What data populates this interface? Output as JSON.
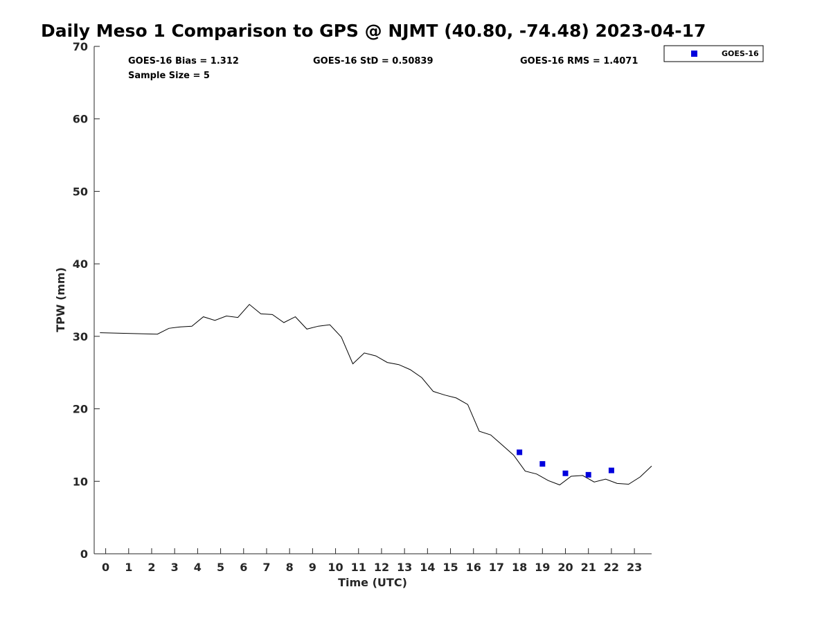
{
  "chart_data": {
    "type": "line",
    "title": "Daily Meso 1 Comparison to GPS @ NJMT (40.80, -74.48) 2023-04-17",
    "xlabel": "Time (UTC)",
    "ylabel": "TPW (mm)",
    "xlim": [
      -0.5,
      23.75
    ],
    "ylim": [
      0,
      70
    ],
    "x_ticks": [
      0,
      1,
      2,
      3,
      4,
      5,
      6,
      7,
      8,
      9,
      10,
      11,
      12,
      13,
      14,
      15,
      16,
      17,
      18,
      19,
      20,
      21,
      22,
      23
    ],
    "y_ticks": [
      0,
      10,
      20,
      30,
      40,
      50,
      60,
      70
    ],
    "grid": false,
    "legend_position": "top-right",
    "stats": {
      "bias": "GOES-16 Bias = 1.312",
      "std": "GOES-16 StD = 0.50839",
      "rms": "GOES-16 RMS = 1.4071",
      "sample": "Sample Size = 5"
    },
    "series": [
      {
        "type": "line",
        "color": "#000000",
        "x": [
          -0.25,
          2.25,
          2.75,
          3.25,
          3.75,
          4.25,
          4.75,
          5.25,
          5.75,
          6.25,
          6.75,
          7.25,
          7.75,
          8.25,
          8.75,
          9.25,
          9.75,
          10.25,
          10.75,
          11.25,
          11.75,
          12.25,
          12.75,
          13.25,
          13.75,
          14.25,
          14.75,
          15.25,
          15.75,
          16.25,
          16.75,
          17.25,
          17.75,
          18.25,
          18.75,
          19.25,
          19.75,
          20.25,
          20.75,
          21.25,
          21.75,
          22.25,
          22.75,
          23.25,
          23.75
        ],
        "y": [
          30.5,
          30.3,
          31.1,
          31.3,
          31.4,
          32.7,
          32.2,
          32.8,
          32.6,
          34.4,
          33.1,
          33.0,
          31.9,
          32.7,
          31.0,
          31.4,
          31.6,
          29.9,
          26.2,
          27.7,
          27.3,
          26.4,
          26.1,
          25.4,
          24.3,
          22.4,
          21.9,
          21.5,
          20.6,
          16.9,
          16.4,
          15.0,
          13.6,
          11.4,
          11.0,
          10.1,
          9.5,
          10.7,
          10.8,
          9.9,
          10.3,
          9.7,
          9.6,
          10.6,
          12.1
        ]
      },
      {
        "name": "GOES-16",
        "type": "scatter",
        "marker": "square",
        "color": "#0000dd",
        "x": [
          18,
          19,
          20,
          21,
          22
        ],
        "y": [
          14.0,
          12.4,
          11.1,
          10.9,
          11.5
        ]
      }
    ]
  }
}
